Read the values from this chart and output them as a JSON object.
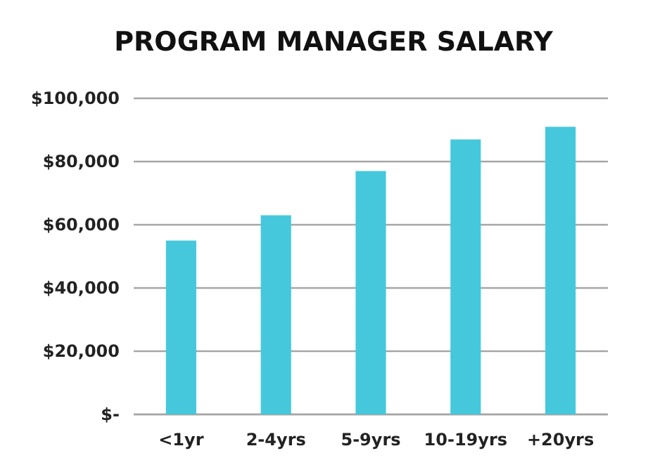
{
  "chart_data": {
    "type": "bar",
    "title": "PROGRAM MANAGER SALARY",
    "categories": [
      "<1yr",
      "2-4yrs",
      "5-9yrs",
      "10-19yrs",
      "+20yrs"
    ],
    "values": [
      55000,
      63000,
      77000,
      87000,
      91000
    ],
    "color": "#45c8dc",
    "ylim": [
      0,
      100000
    ],
    "yticks": [
      {
        "value": 0,
        "label": "$-"
      },
      {
        "value": 20000,
        "label": "$20,000"
      },
      {
        "value": 40000,
        "label": "$40,000"
      },
      {
        "value": 60000,
        "label": "$60,000"
      },
      {
        "value": 80000,
        "label": "$80,000"
      },
      {
        "value": 100000,
        "label": "$100,000"
      }
    ],
    "grid": "y"
  }
}
